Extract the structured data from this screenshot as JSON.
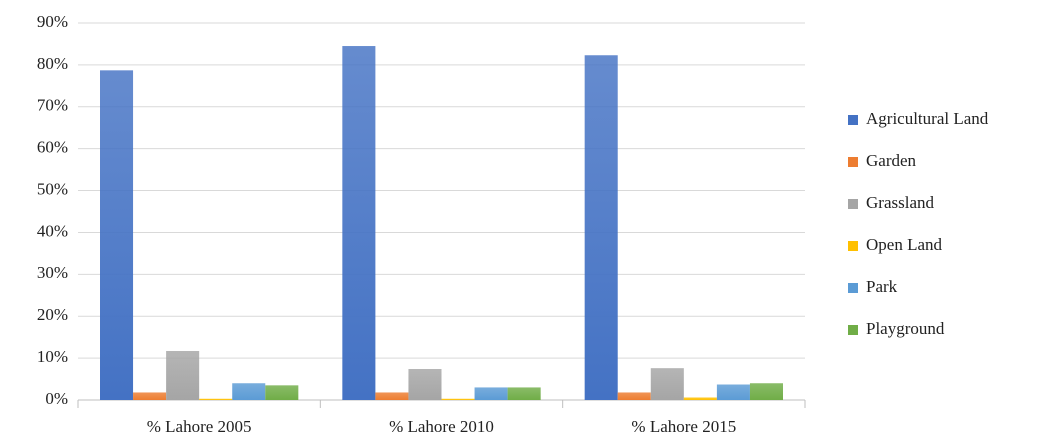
{
  "chart_data": {
    "type": "bar",
    "categories": [
      "% Lahore 2005",
      "% Lahore 2010",
      "% Lahore 2015"
    ],
    "series": [
      {
        "name": "Agricultural Land",
        "color": "#4472c4",
        "values": [
          78.7,
          84.5,
          82.3
        ]
      },
      {
        "name": "Garden",
        "color": "#ed7d31",
        "values": [
          1.8,
          1.8,
          1.8
        ]
      },
      {
        "name": "Grassland",
        "color": "#a5a5a5",
        "values": [
          11.7,
          7.4,
          7.6
        ]
      },
      {
        "name": "Open Land",
        "color": "#ffc000",
        "values": [
          0.3,
          0.3,
          0.6
        ]
      },
      {
        "name": "Park",
        "color": "#5b9bd5",
        "values": [
          4.0,
          3.0,
          3.7
        ]
      },
      {
        "name": "Playground",
        "color": "#70ad47",
        "values": [
          3.5,
          3.0,
          4.0
        ]
      }
    ],
    "ylim": [
      0,
      90
    ],
    "yticks": [
      {
        "value": 0,
        "label": "0%"
      },
      {
        "value": 10,
        "label": "10%"
      },
      {
        "value": 20,
        "label": "20%"
      },
      {
        "value": 30,
        "label": "30%"
      },
      {
        "value": 40,
        "label": "40%"
      },
      {
        "value": 50,
        "label": "50%"
      },
      {
        "value": 60,
        "label": "60%"
      },
      {
        "value": 70,
        "label": "70%"
      },
      {
        "value": 80,
        "label": "80%"
      },
      {
        "value": 90,
        "label": "90%"
      }
    ],
    "grid": true,
    "legend": "right"
  }
}
